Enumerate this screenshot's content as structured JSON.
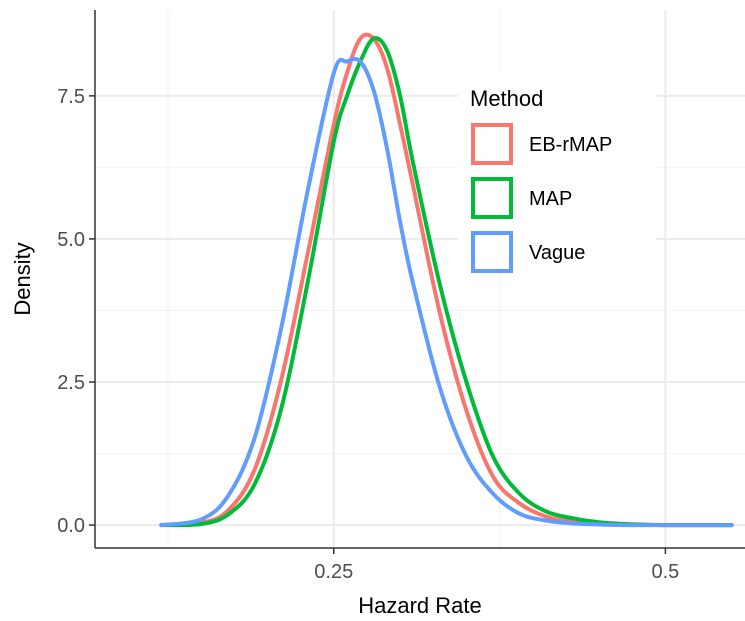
{
  "chart_data": {
    "type": "line",
    "subtype": "density",
    "xlabel": "Hazard Rate",
    "ylabel": "Density",
    "xlim": [
      0.07,
      0.56
    ],
    "ylim": [
      -0.4,
      9.0
    ],
    "x_ticks": [
      0.25,
      0.5
    ],
    "x_tick_labels": [
      "0.25",
      "0.5"
    ],
    "y_ticks": [
      0,
      2.5,
      5.0,
      7.5
    ],
    "y_tick_labels": [
      "0.0",
      "2.5",
      "5.0",
      "7.5"
    ],
    "grid": true,
    "legend": {
      "title": "Method",
      "position": "top-right",
      "entries": [
        "EB-rMAP",
        "MAP",
        "Vague"
      ]
    },
    "series": [
      {
        "name": "EB-rMAP",
        "color": "#F8766D",
        "x": [
          0.12,
          0.15,
          0.17,
          0.19,
          0.21,
          0.23,
          0.25,
          0.26,
          0.27,
          0.28,
          0.29,
          0.3,
          0.31,
          0.33,
          0.35,
          0.37,
          0.39,
          0.41,
          0.43,
          0.45,
          0.47,
          0.5,
          0.55
        ],
        "y": [
          0.0,
          0.04,
          0.25,
          0.95,
          2.5,
          4.7,
          7.0,
          7.9,
          8.5,
          8.5,
          8.0,
          7.0,
          5.9,
          3.7,
          2.0,
          0.85,
          0.38,
          0.15,
          0.06,
          0.02,
          0.01,
          0.0,
          0.0
        ]
      },
      {
        "name": "MAP",
        "color": "#00BA38",
        "x": [
          0.12,
          0.15,
          0.17,
          0.19,
          0.21,
          0.23,
          0.25,
          0.26,
          0.27,
          0.28,
          0.29,
          0.3,
          0.31,
          0.33,
          0.35,
          0.37,
          0.39,
          0.41,
          0.43,
          0.45,
          0.47,
          0.5,
          0.55
        ],
        "y": [
          0.0,
          0.02,
          0.18,
          0.7,
          2.0,
          4.2,
          6.7,
          7.5,
          8.1,
          8.5,
          8.3,
          7.5,
          6.3,
          4.2,
          2.5,
          1.2,
          0.55,
          0.24,
          0.12,
          0.05,
          0.02,
          0.0,
          0.0
        ]
      },
      {
        "name": "Vague",
        "color": "#619CFF",
        "x": [
          0.12,
          0.15,
          0.17,
          0.19,
          0.21,
          0.23,
          0.25,
          0.26,
          0.27,
          0.28,
          0.29,
          0.3,
          0.31,
          0.33,
          0.35,
          0.37,
          0.39,
          0.41,
          0.43,
          0.45,
          0.47,
          0.5,
          0.55
        ],
        "y": [
          0.0,
          0.1,
          0.5,
          1.5,
          3.4,
          5.8,
          7.9,
          8.1,
          8.1,
          7.6,
          6.6,
          5.3,
          4.2,
          2.4,
          1.2,
          0.55,
          0.2,
          0.08,
          0.03,
          0.01,
          0.0,
          0.0,
          0.0
        ]
      }
    ]
  }
}
